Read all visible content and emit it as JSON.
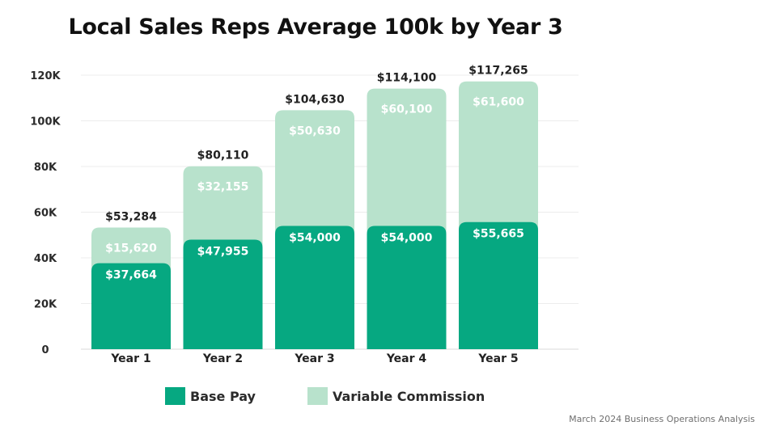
{
  "chart_data": {
    "type": "bar",
    "stacked": true,
    "title": "Local Sales Reps Average 100k by Year 3",
    "categories": [
      "Year 1",
      "Year 2",
      "Year 3",
      "Year 4",
      "Year 5"
    ],
    "series": [
      {
        "name": "Base Pay",
        "color": "#06a881",
        "values": [
          37664,
          47955,
          54000,
          54000,
          55665
        ],
        "labels": [
          "$37,664",
          "$47,955",
          "$54,000",
          "$54,000",
          "$55,665"
        ]
      },
      {
        "name": "Variable Commission",
        "color": "#b8e2cc",
        "values": [
          15620,
          32155,
          50630,
          60100,
          61600
        ],
        "labels": [
          "$15,620",
          "$32,155",
          "$50,630",
          "$60,100",
          "$61,600"
        ]
      }
    ],
    "totals": [
      53284,
      80110,
      104630,
      114100,
      117265
    ],
    "total_labels": [
      "$53,284",
      "$80,110",
      "$104,630",
      "$114,100",
      "$117,265"
    ],
    "ylim": [
      0,
      120000
    ],
    "yticks": [
      0,
      20000,
      40000,
      60000,
      80000,
      100000,
      120000
    ],
    "ytick_labels": [
      "0",
      "20K",
      "40K",
      "60K",
      "80K",
      "100K",
      "120K"
    ],
    "grid": true,
    "legend": "bottom"
  },
  "footnote": "March 2024 Business Operations Analysis"
}
